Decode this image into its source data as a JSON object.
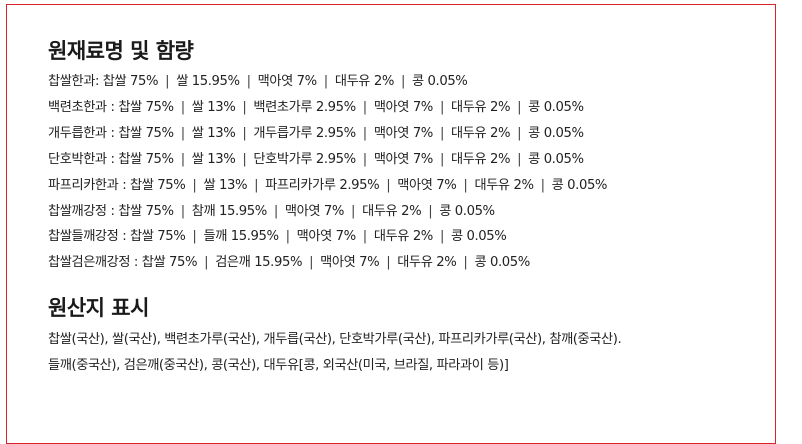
{
  "ingredients_section": {
    "title": "원재료명 및 함량",
    "rows": [
      {
        "product": "찹쌀한과",
        "parts": [
          "찹쌀 75%",
          "쌀 15.95%",
          "맥아엿 7%",
          "대두유 2%",
          "콩 0.05%"
        ]
      },
      {
        "product": "백련초한과",
        "parts": [
          "찹쌀 75%",
          "쌀 13%",
          "백련초가루 2.95%",
          "맥아엿 7%",
          "대두유 2%",
          "콩 0.05%"
        ]
      },
      {
        "product": "개두릅한과",
        "parts": [
          "찹쌀 75%",
          "쌀 13%",
          "개두릅가루 2.95%",
          "맥아엿 7%",
          "대두유 2%",
          "콩 0.05%"
        ]
      },
      {
        "product": "단호박한과",
        "parts": [
          "찹쌀 75%",
          "쌀 13%",
          "단호박가루 2.95%",
          "맥아엿 7%",
          "대두유 2%",
          "콩 0.05%"
        ]
      },
      {
        "product": "파프리카한과",
        "parts": [
          "찹쌀 75%",
          "쌀 13%",
          "파프리카가루 2.95%",
          "맥아엿 7%",
          "대두유 2%",
          "콩 0.05%"
        ]
      },
      {
        "product": "찹쌀깨강정",
        "parts": [
          "찹쌀 75%",
          "참깨 15.95%",
          "맥아엿 7%",
          "대두유 2%",
          "콩 0.05%"
        ]
      },
      {
        "product": "찹쌀들깨강정",
        "parts": [
          "찹쌀 75%",
          "들깨 15.95%",
          "맥아엿 7%",
          "대두유 2%",
          "콩 0.05%"
        ]
      },
      {
        "product": "찹쌀검은깨강정",
        "parts": [
          "찹쌀 75%",
          "검은깨 15.95%",
          "맥아엿 7%",
          "대두유 2%",
          "콩 0.05%"
        ]
      }
    ]
  },
  "origin_section": {
    "title": "원산지 표시",
    "line1": "찹쌀(국산), 쌀(국산), 백련초가루(국산), 개두릅(국산), 단호박가루(국산), 파프리카가루(국산), 참깨(중국산).",
    "line2": "들깨(중국산), 검은깨(중국산), 콩(국산), 대두유[콩, 외국산(미국, 브라질, 파라과이 등)]"
  }
}
